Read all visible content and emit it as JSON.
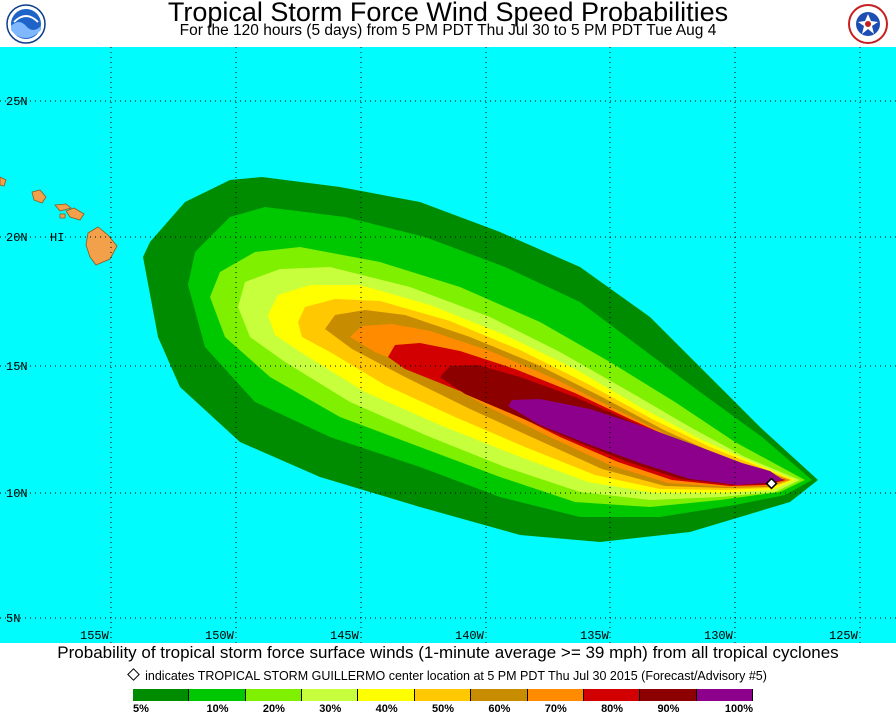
{
  "header": {
    "title": "Tropical Storm Force Wind Speed Probabilities",
    "subtitle": "For the 120 hours (5 days) from 5 PM PDT Thu Jul 30 to 5 PM PDT Tue Aug 4"
  },
  "logos": {
    "left": "noaa-logo",
    "right": "national-weather-service-logo"
  },
  "map": {
    "ocean_color": "#00fcfc",
    "land_color": "#f2a04a",
    "grid": true,
    "lat_labels": [
      "25N",
      "20N",
      "15N",
      "10N",
      "5N"
    ],
    "lon_labels": [
      "155W",
      "150W",
      "145W",
      "140W",
      "135W",
      "130W",
      "125W"
    ],
    "place_label": "HI",
    "storm_center": {
      "lat": 10.4,
      "lon": 128.0
    }
  },
  "caption": "Probability of tropical storm force surface winds (1-minute average >= 39 mph) from all tropical cyclones",
  "marker_note": "indicates TROPICAL STORM GUILLERMO center location at 5 PM PDT Thu Jul 30 2015 (Forecast/Advisory #5)",
  "legend": {
    "colors": [
      "#008c00",
      "#00c800",
      "#7ef000",
      "#c8ff3c",
      "#ffff00",
      "#ffc800",
      "#c88c00",
      "#ff8c00",
      "#d20000",
      "#8c0000",
      "#8c008c"
    ],
    "labels": [
      "5%",
      "10%",
      "20%",
      "30%",
      "40%",
      "50%",
      "60%",
      "70%",
      "80%",
      "90%",
      "100%"
    ]
  }
}
